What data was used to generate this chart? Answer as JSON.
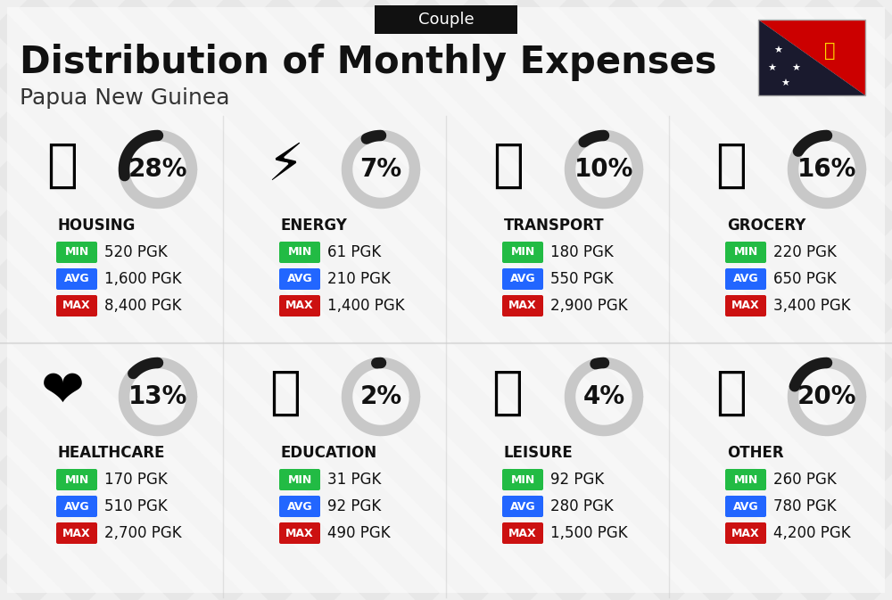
{
  "title": "Distribution of Monthly Expenses",
  "subtitle": "Papua New Guinea",
  "header_label": "Couple",
  "bg_color": "#efefef",
  "categories": [
    {
      "name": "HOUSING",
      "pct": 28,
      "min": "520 PGK",
      "avg": "1,600 PGK",
      "max": "8,400 PGK",
      "col": 0,
      "row": 0
    },
    {
      "name": "ENERGY",
      "pct": 7,
      "min": "61 PGK",
      "avg": "210 PGK",
      "max": "1,400 PGK",
      "col": 1,
      "row": 0
    },
    {
      "name": "TRANSPORT",
      "pct": 10,
      "min": "180 PGK",
      "avg": "550 PGK",
      "max": "2,900 PGK",
      "col": 2,
      "row": 0
    },
    {
      "name": "GROCERY",
      "pct": 16,
      "min": "220 PGK",
      "avg": "650 PGK",
      "max": "3,400 PGK",
      "col": 3,
      "row": 0
    },
    {
      "name": "HEALTHCARE",
      "pct": 13,
      "min": "170 PGK",
      "avg": "510 PGK",
      "max": "2,700 PGK",
      "col": 0,
      "row": 1
    },
    {
      "name": "EDUCATION",
      "pct": 2,
      "min": "31 PGK",
      "avg": "92 PGK",
      "max": "490 PGK",
      "col": 1,
      "row": 1
    },
    {
      "name": "LEISURE",
      "pct": 4,
      "min": "92 PGK",
      "avg": "280 PGK",
      "max": "1,500 PGK",
      "col": 2,
      "row": 1
    },
    {
      "name": "OTHER",
      "pct": 20,
      "min": "260 PGK",
      "avg": "780 PGK",
      "max": "4,200 PGK",
      "col": 3,
      "row": 1
    }
  ],
  "min_color": "#22bb44",
  "avg_color": "#2266ff",
  "max_color": "#cc1111",
  "arc_dark": "#1a1a1a",
  "arc_light": "#c8c8c8",
  "title_fontsize": 30,
  "subtitle_fontsize": 18,
  "cat_fontsize": 12,
  "pct_fontsize": 20,
  "val_fontsize": 12,
  "badge_fontsize": 9
}
